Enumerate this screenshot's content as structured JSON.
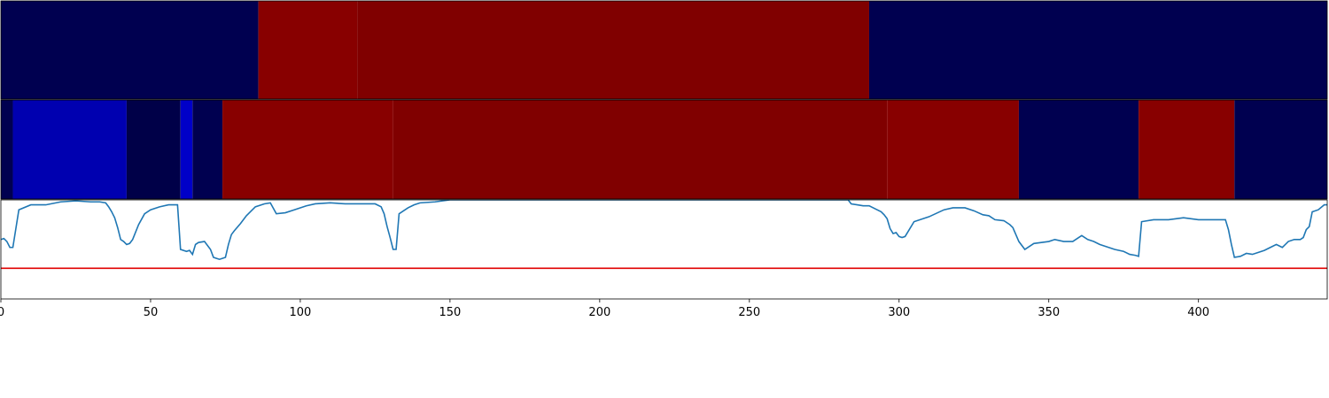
{
  "chart_data": [
    {
      "type": "heatmap",
      "name": "top-band",
      "segments": [
        {
          "start": 0,
          "end": 86,
          "color": "#000050"
        },
        {
          "start": 86,
          "end": 119,
          "color": "#880000"
        },
        {
          "start": 119,
          "end": 290,
          "color": "#800000"
        },
        {
          "start": 290,
          "end": 443,
          "color": "#000050"
        }
      ]
    },
    {
      "type": "heatmap",
      "name": "middle-band",
      "segments": [
        {
          "start": 0,
          "end": 4,
          "color": "#000050"
        },
        {
          "start": 4,
          "end": 42,
          "color": "#0000b0"
        },
        {
          "start": 42,
          "end": 60,
          "color": "#000048"
        },
        {
          "start": 60,
          "end": 64,
          "color": "#0000c8"
        },
        {
          "start": 64,
          "end": 74,
          "color": "#000050"
        },
        {
          "start": 74,
          "end": 131,
          "color": "#880000"
        },
        {
          "start": 131,
          "end": 296,
          "color": "#800000"
        },
        {
          "start": 296,
          "end": 340,
          "color": "#880000"
        },
        {
          "start": 340,
          "end": 380,
          "color": "#000050"
        },
        {
          "start": 380,
          "end": 412,
          "color": "#880000"
        },
        {
          "start": 412,
          "end": 443,
          "color": "#000050"
        }
      ]
    },
    {
      "type": "line",
      "name": "score-line",
      "xlim": [
        0,
        443
      ],
      "ylim": [
        0,
        1
      ],
      "line_color": "#1f77b4",
      "threshold": 0.31,
      "threshold_color": "#e00000",
      "x": [
        0,
        1,
        2,
        3,
        4,
        6,
        10,
        15,
        20,
        25,
        30,
        33,
        35,
        36,
        37,
        38,
        39,
        40,
        41,
        42,
        43,
        44,
        46,
        48,
        50,
        53,
        56,
        58,
        59,
        60,
        62,
        63,
        64,
        65,
        66,
        68,
        70,
        71,
        72,
        73,
        74,
        75,
        76,
        77,
        78,
        80,
        82,
        85,
        88,
        90,
        92,
        95,
        98,
        100,
        102,
        105,
        110,
        115,
        120,
        125,
        127,
        128,
        129,
        130,
        131,
        132,
        133,
        134,
        135,
        136,
        138,
        140,
        145,
        150,
        160,
        200,
        250,
        280,
        282,
        283,
        284,
        286,
        288,
        290,
        292,
        294,
        295,
        296,
        297,
        298,
        299,
        300,
        301,
        302,
        305,
        310,
        315,
        318,
        320,
        322,
        325,
        328,
        330,
        332,
        335,
        337,
        338,
        339,
        340,
        342,
        345,
        350,
        352,
        355,
        358,
        360,
        361,
        363,
        365,
        367,
        370,
        372,
        375,
        377,
        379,
        380,
        381,
        385,
        390,
        395,
        400,
        405,
        408,
        409,
        410,
        411,
        412,
        414,
        416,
        418,
        420,
        422,
        424,
        426,
        428,
        430,
        432,
        434,
        435,
        436,
        437,
        438,
        440,
        442,
        443
      ],
      "y": [
        0.6,
        0.61,
        0.58,
        0.52,
        0.52,
        0.9,
        0.95,
        0.95,
        0.98,
        0.99,
        0.98,
        0.98,
        0.97,
        0.93,
        0.88,
        0.82,
        0.72,
        0.6,
        0.58,
        0.55,
        0.56,
        0.6,
        0.75,
        0.86,
        0.9,
        0.93,
        0.95,
        0.95,
        0.95,
        0.5,
        0.48,
        0.49,
        0.45,
        0.55,
        0.57,
        0.58,
        0.5,
        0.42,
        0.41,
        0.4,
        0.41,
        0.42,
        0.55,
        0.65,
        0.69,
        0.76,
        0.84,
        0.93,
        0.96,
        0.97,
        0.86,
        0.87,
        0.9,
        0.92,
        0.94,
        0.96,
        0.97,
        0.96,
        0.96,
        0.96,
        0.93,
        0.86,
        0.73,
        0.62,
        0.5,
        0.5,
        0.86,
        0.88,
        0.9,
        0.92,
        0.95,
        0.97,
        0.98,
        1.0,
        1.0,
        1.0,
        1.0,
        1.0,
        1.0,
        1.0,
        0.96,
        0.95,
        0.94,
        0.94,
        0.91,
        0.88,
        0.85,
        0.81,
        0.71,
        0.66,
        0.67,
        0.63,
        0.62,
        0.63,
        0.78,
        0.83,
        0.9,
        0.92,
        0.92,
        0.92,
        0.89,
        0.85,
        0.84,
        0.8,
        0.79,
        0.75,
        0.72,
        0.65,
        0.58,
        0.5,
        0.56,
        0.58,
        0.6,
        0.58,
        0.58,
        0.62,
        0.64,
        0.6,
        0.58,
        0.55,
        0.52,
        0.5,
        0.48,
        0.45,
        0.44,
        0.43,
        0.78,
        0.8,
        0.8,
        0.82,
        0.8,
        0.8,
        0.8,
        0.8,
        0.7,
        0.55,
        0.42,
        0.43,
        0.46,
        0.45,
        0.47,
        0.49,
        0.52,
        0.55,
        0.52,
        0.58,
        0.6,
        0.6,
        0.62,
        0.7,
        0.73,
        0.88,
        0.9,
        0.95,
        0.95
      ]
    }
  ],
  "x_axis": {
    "ticks": [
      {
        "value": 0,
        "label": "0"
      },
      {
        "value": 50,
        "label": "50"
      },
      {
        "value": 100,
        "label": "100"
      },
      {
        "value": 150,
        "label": "150"
      },
      {
        "value": 200,
        "label": "200"
      },
      {
        "value": 250,
        "label": "250"
      },
      {
        "value": 300,
        "label": "300"
      },
      {
        "value": 350,
        "label": "350"
      },
      {
        "value": 400,
        "label": "400"
      }
    ]
  }
}
